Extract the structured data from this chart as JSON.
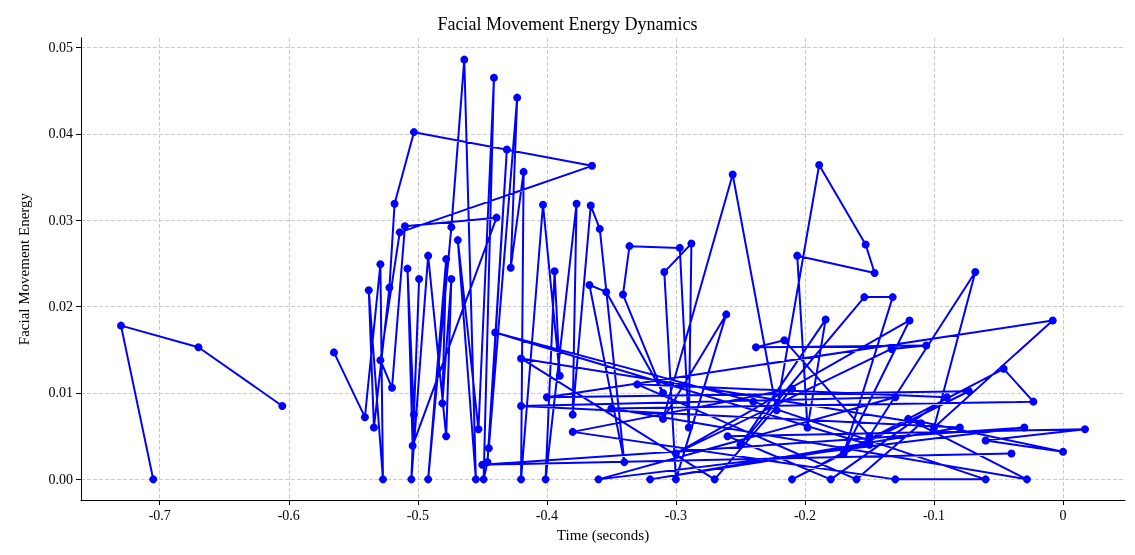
{
  "chart_data": {
    "type": "line",
    "title": "Facial Movement Energy Dynamics",
    "xlabel": "Time (seconds)",
    "ylabel": "Facial Movement Energy",
    "xlim": [
      -0.761,
      0.048
    ],
    "xticks": [
      -0.7,
      -0.6,
      -0.5,
      -0.4,
      -0.3,
      -0.2,
      -0.1,
      0.0
    ],
    "ylim": [
      -0.0024,
      0.0511
    ],
    "yticks": [
      {
        "value": 0,
        "label": "0.00"
      },
      {
        "value": 0.01,
        "label": "0.01"
      },
      {
        "value": 0.02,
        "label": "0.02"
      },
      {
        "value": 0.03,
        "label": "0.03"
      },
      {
        "value": 0.04,
        "label": "0.04"
      },
      {
        "value": 0.05,
        "label": "0.05"
      }
    ],
    "grid": true,
    "marker": "circle",
    "line_style": "solid",
    "series": [
      {
        "color": "#0000ff",
        "x": [
          -0.705,
          -0.73,
          -0.67,
          -0.605,
          -0.59,
          -0.565,
          -0.541,
          -0.529,
          -0.527,
          -0.538,
          -0.534,
          -0.522,
          -0.518,
          -0.503,
          -0.365,
          -0.514,
          -0.529,
          -0.52,
          -0.51,
          -0.439,
          -0.504,
          -0.508,
          -0.503,
          -0.499,
          -0.505,
          -0.492,
          -0.478,
          -0.474,
          -0.481,
          -0.478,
          -0.492,
          -0.474,
          -0.464,
          -0.455,
          -0.469,
          -0.453,
          -0.441,
          -0.449,
          -0.446,
          -0.431,
          -0.445,
          -0.423,
          -0.428,
          -0.418,
          -0.42,
          -0.403,
          -0.39,
          -0.394,
          -0.401,
          -0.377,
          -0.38,
          -0.366,
          -0.359,
          -0.34,
          -0.367,
          -0.354,
          -0.31,
          -0.341,
          -0.336,
          -0.297,
          -0.29,
          -0.288,
          -0.309,
          -0.3,
          -0.261,
          -0.31,
          -0.256,
          -0.222,
          -0.189,
          -0.153,
          -0.146,
          -0.206,
          -0.198,
          -0.184,
          -0.25,
          -0.154,
          -0.132,
          -0.17,
          -0.119,
          -0.3,
          -0.133,
          -0.106,
          -0.238,
          -0.216,
          -0.15,
          -0.068,
          -0.1,
          -0.008,
          -0.4,
          -0.073,
          -0.21,
          -0.046,
          -0.023,
          -0.35,
          -0.028,
          -0.12,
          0.0,
          -0.06,
          0.017,
          -0.26,
          -0.18,
          -0.09,
          -0.33,
          -0.16,
          -0.11,
          -0.42,
          -0.27,
          -0.21,
          -0.38,
          -0.13,
          -0.06,
          -0.24,
          -0.44,
          -0.15,
          -0.32,
          -0.08,
          -0.42,
          -0.13,
          -0.36,
          -0.03,
          -0.45,
          -0.04
        ],
        "values": [
          0,
          0.0178,
          0.0153,
          0.0085,
          null,
          0.0147,
          0.0072,
          0.0249,
          0,
          0.0219,
          0.006,
          0.0222,
          0.0319,
          0.0402,
          0.0363,
          0.0286,
          0.0138,
          0.0106,
          0.0293,
          0.0303,
          0.0039,
          0.0244,
          0.0075,
          0.0232,
          0,
          0.0259,
          0.005,
          0.0232,
          0.0088,
          0.0255,
          0,
          0.0292,
          0.0486,
          0,
          0.0277,
          0.0058,
          0.0465,
          0,
          0.002,
          0.0382,
          0.0036,
          0.0442,
          0.0245,
          0.0356,
          0,
          0.0318,
          0.012,
          0.0241,
          0,
          0.0319,
          0.0075,
          0.0317,
          0.029,
          0.002,
          0.0225,
          0.0217,
          0.01,
          0.0214,
          0.027,
          0.0268,
          0.006,
          0.0273,
          0.024,
          0,
          0.0191,
          0.007,
          0.0353,
          0.008,
          0.0364,
          0.0272,
          0.0239,
          0.0259,
          0.006,
          0.0185,
          0.004,
          0.0211,
          0.0211,
          0.003,
          0.0184,
          0.003,
          0.0151,
          0.0155,
          0.0153,
          0.0161,
          0.005,
          0.024,
          0.006,
          0.0184,
          0.0095,
          0.0102,
          0,
          0.0128,
          0.009,
          0.0082,
          0,
          0.007,
          0.0032,
          0.0045,
          0.0058,
          0.005,
          0,
          0.0095,
          0.011,
          0,
          0.0065,
          0.014,
          0,
          0.0105,
          0.0055,
          0,
          0,
          0.009,
          0.017,
          0.004,
          0,
          0.006,
          0.0085,
          0.0095,
          0,
          0.006,
          0.0017,
          0.003
        ]
      }
    ]
  }
}
